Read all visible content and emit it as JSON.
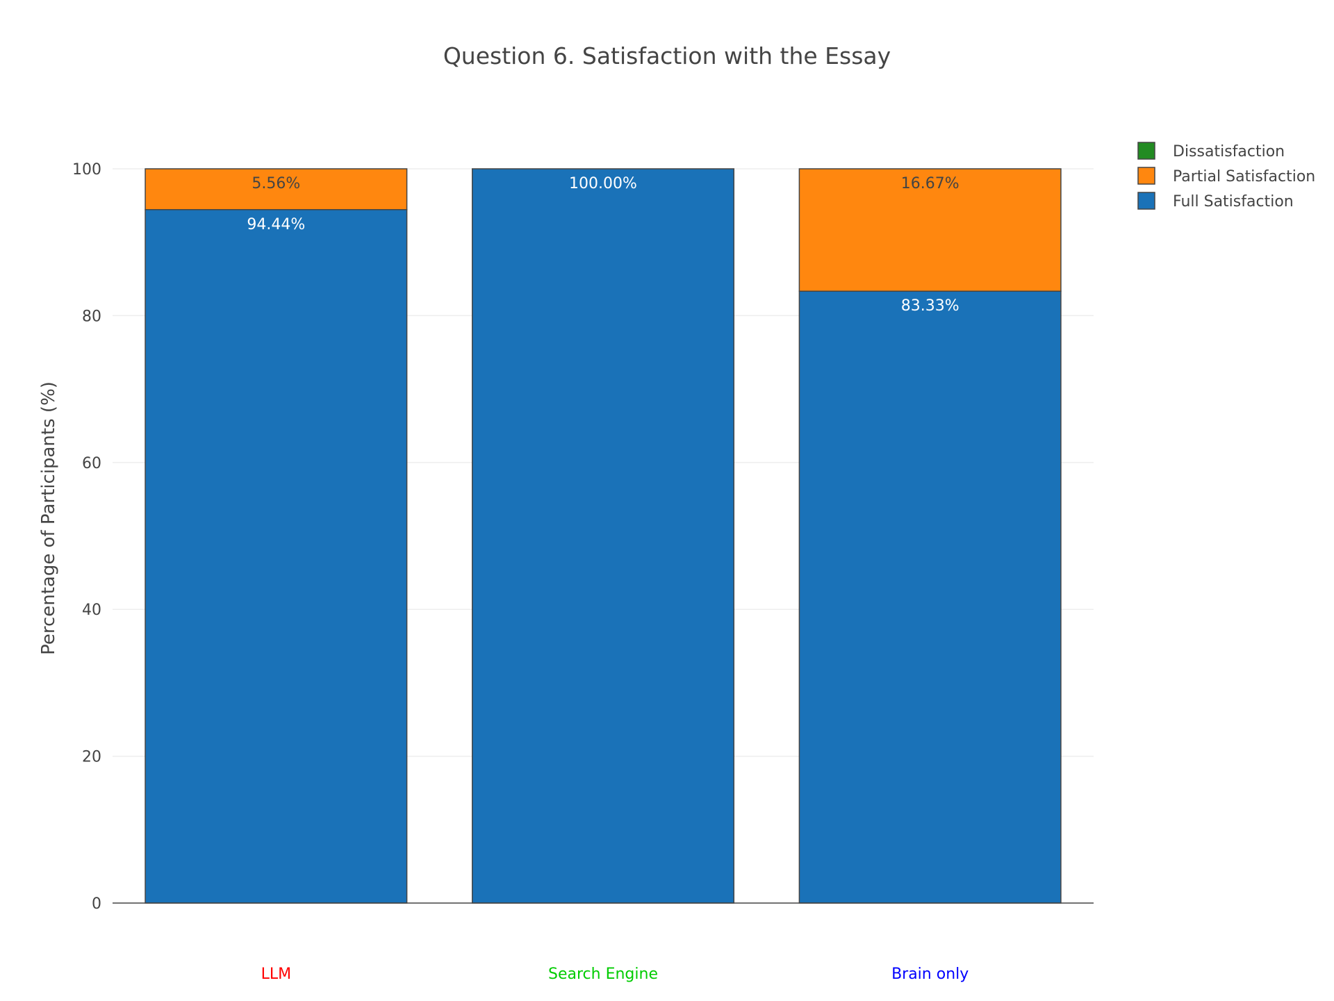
{
  "chart_data": {
    "type": "bar",
    "stacked": true,
    "title": "Question 6. Satisfaction with the Essay",
    "xlabel": "",
    "ylabel": "Percentage of Participants (%)",
    "ylim": [
      0,
      100
    ],
    "yticks": [
      0,
      20,
      40,
      60,
      80,
      100
    ],
    "grid": true,
    "legend_position": "top-right",
    "categories": [
      "LLM",
      "Search Engine",
      "Brain only"
    ],
    "category_colors": [
      "#ff0000",
      "#00cc00",
      "#0000ff"
    ],
    "series": [
      {
        "name": "Full Satisfaction",
        "color": "#1a72b8",
        "values": [
          94.44,
          100.0,
          83.33
        ],
        "labels": [
          "94.44%",
          "100.00%",
          "83.33%"
        ],
        "label_color": "#ffffff"
      },
      {
        "name": "Partial Satisfaction",
        "color": "#ff870f",
        "values": [
          5.56,
          0,
          16.67
        ],
        "labels": [
          "5.56%",
          "",
          "16.67%"
        ],
        "label_color": "#444444"
      },
      {
        "name": "Dissatisfaction",
        "color": "#228b22",
        "values": [
          0,
          0,
          0
        ],
        "labels": [
          "",
          "",
          ""
        ],
        "label_color": "#444444"
      }
    ]
  }
}
